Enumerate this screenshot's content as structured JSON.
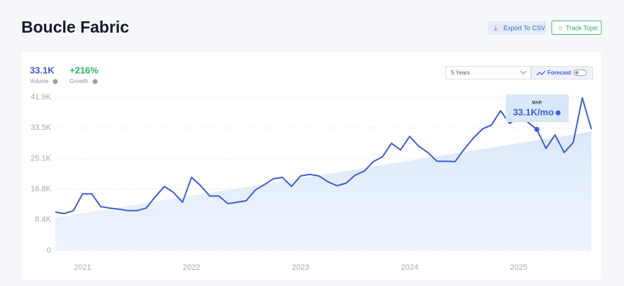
{
  "header": {
    "title": "Boucle Fabric",
    "buttons": [
      "Export To CSV",
      "Track Topic"
    ]
  },
  "stats": [
    {
      "value": "33.1K",
      "label": "Volume"
    },
    {
      "value": "+216%",
      "label": "Growth"
    }
  ],
  "controls": {
    "range": "5 Years",
    "forecast": "Forecast"
  },
  "chart_data": {
    "type": "line",
    "categories": [
      null,
      null,
      null,
      "2021",
      null,
      null,
      null,
      null,
      null,
      null,
      null,
      null,
      null,
      null,
      null,
      "2022",
      null,
      null,
      null,
      null,
      null,
      null,
      null,
      null,
      null,
      null,
      null,
      "2023",
      null,
      null,
      null,
      null,
      null,
      null,
      null,
      null,
      null,
      null,
      null,
      "2024",
      null,
      null,
      null,
      null,
      null,
      null,
      null,
      null,
      null,
      null,
      null,
      "2025",
      null,
      null,
      null,
      null,
      null,
      null,
      null,
      null
    ],
    "series": [
      {
        "name": "Volume",
        "color": "#3d5fd9",
        "values": [
          10500,
          10100,
          10900,
          15500,
          15500,
          12000,
          11600,
          11300,
          10900,
          10900,
          11600,
          14700,
          17500,
          15900,
          13200,
          20000,
          17700,
          14900,
          14900,
          12800,
          13200,
          13600,
          16500,
          18000,
          19600,
          20000,
          17500,
          20400,
          20800,
          20400,
          18800,
          17700,
          18400,
          20600,
          21700,
          24300,
          25600,
          29300,
          27500,
          31200,
          28500,
          26800,
          24400,
          24400,
          24300,
          27700,
          30700,
          33200,
          34300,
          38200,
          34700,
          36500,
          35100,
          33100,
          27900,
          31600,
          26800,
          29500,
          41700,
          33200
        ]
      }
    ],
    "trend": {
      "start": 9000,
      "end": 32500
    },
    "tooltip": {
      "category": "MAR",
      "value": 33100,
      "value_label": "33.1K/mo"
    },
    "ylim": [
      0,
      41900
    ],
    "yticks": [
      0,
      {
        "value": 8400,
        "label": "8.4K"
      },
      {
        "value": 16800,
        "label": "16.8K"
      },
      {
        "value": 25100,
        "label": "25.1K"
      },
      {
        "value": 33500,
        "label": "33.5K"
      },
      {
        "value": 41900,
        "label": "41.9K"
      }
    ],
    "grid": true
  }
}
